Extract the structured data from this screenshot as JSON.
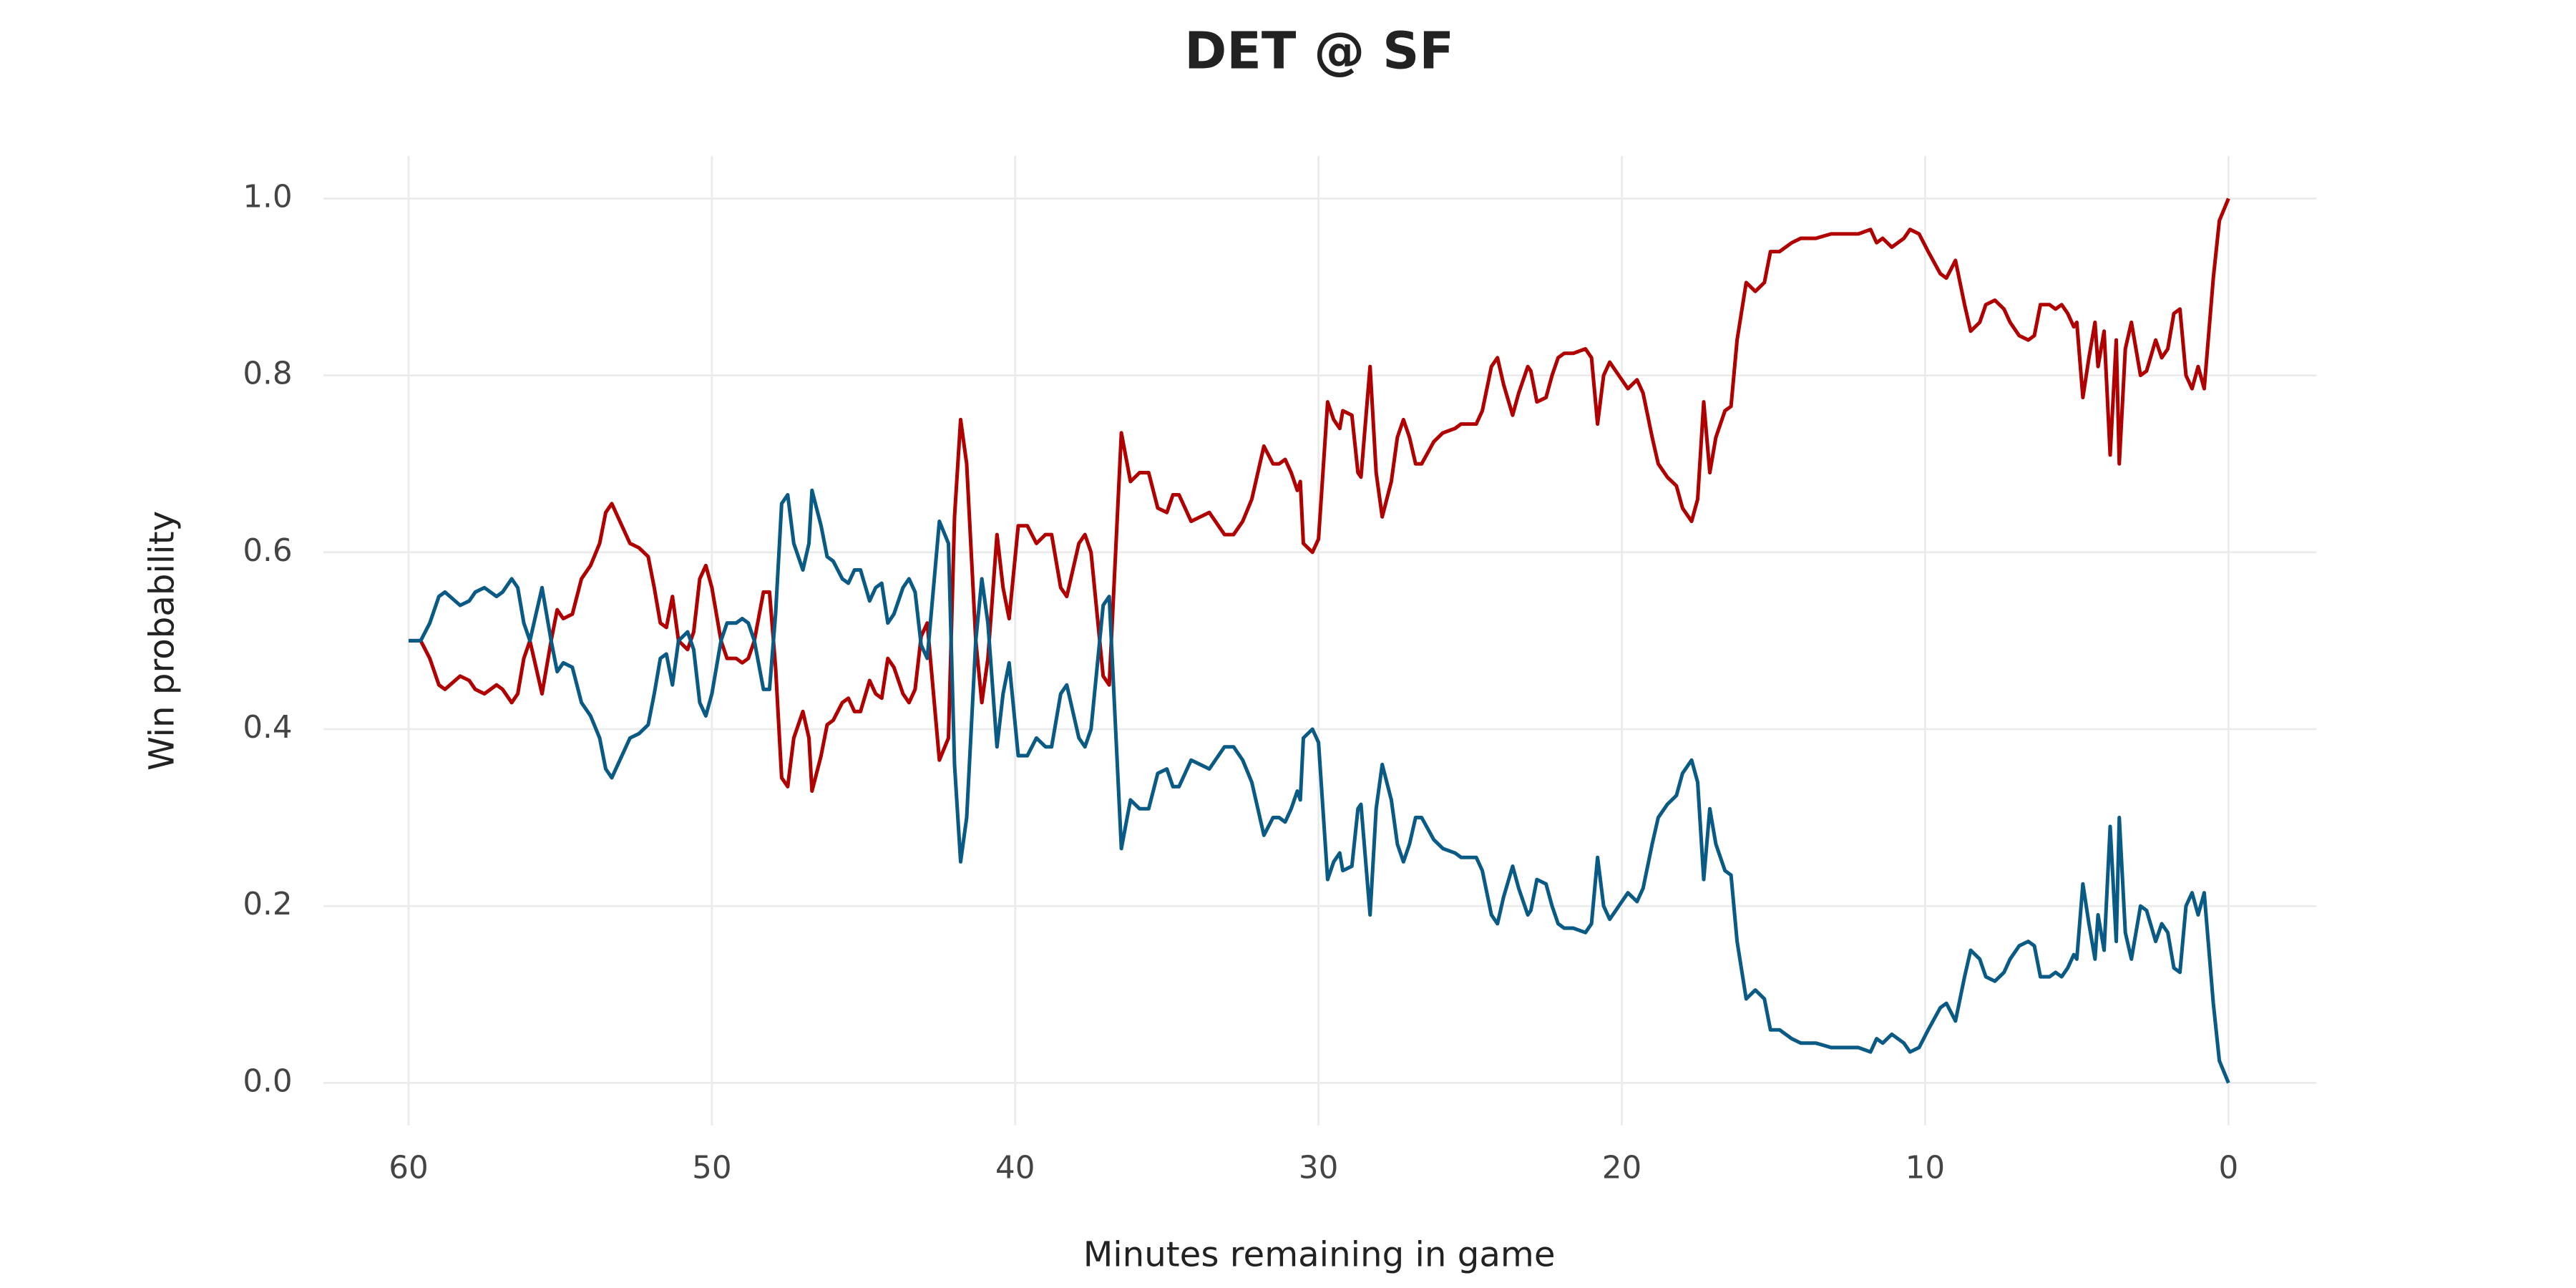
{
  "chart_data": {
    "type": "line",
    "title": "DET @ SF",
    "x_label": "Minutes remaining in game",
    "y_label": "Win probability",
    "x": [
      60,
      59.6,
      59.3,
      59.0,
      58.8,
      58.3,
      58.0,
      57.8,
      57.5,
      57.1,
      56.9,
      56.6,
      56.4,
      56.2,
      56.0,
      55.8,
      55.6,
      55.3,
      55.1,
      54.9,
      54.6,
      54.3,
      54.0,
      53.7,
      53.5,
      53.3,
      53.1,
      52.7,
      52.4,
      52.1,
      51.9,
      51.7,
      51.5,
      51.3,
      51.1,
      50.8,
      50.6,
      50.4,
      50.2,
      50.0,
      49.7,
      49.5,
      49.2,
      49.0,
      48.8,
      48.6,
      48.3,
      48.1,
      47.9,
      47.7,
      47.5,
      47.3,
      47.0,
      46.8,
      46.7,
      46.4,
      46.2,
      46.0,
      45.7,
      45.5,
      45.3,
      45.1,
      44.8,
      44.6,
      44.4,
      44.2,
      44.0,
      43.7,
      43.5,
      43.3,
      43.1,
      42.9,
      42.5,
      42.2,
      42.0,
      41.8,
      41.6,
      41.3,
      41.1,
      40.9,
      40.6,
      40.4,
      40.2,
      39.9,
      39.6,
      39.3,
      39.0,
      38.8,
      38.5,
      38.3,
      37.9,
      37.7,
      37.5,
      37.1,
      36.9,
      36.5,
      36.2,
      35.9,
      35.6,
      35.3,
      35.0,
      34.8,
      34.6,
      34.2,
      33.9,
      33.6,
      33.4,
      33.1,
      32.8,
      32.5,
      32.2,
      32.0,
      31.8,
      31.5,
      31.3,
      31.1,
      30.9,
      30.7,
      30.6,
      30.5,
      30.2,
      30.0,
      29.7,
      29.5,
      29.3,
      29.2,
      28.9,
      28.7,
      28.6,
      28.3,
      28.1,
      27.9,
      27.6,
      27.4,
      27.2,
      27.0,
      26.8,
      26.6,
      26.2,
      25.9,
      25.5,
      25.3,
      24.8,
      24.6,
      24.3,
      24.1,
      23.9,
      23.6,
      23.4,
      23.1,
      23.0,
      22.8,
      22.5,
      22.3,
      22.1,
      21.9,
      21.6,
      21.2,
      21.0,
      20.8,
      20.6,
      20.4,
      20.1,
      19.8,
      19.5,
      19.3,
      19.0,
      18.8,
      18.5,
      18.2,
      18.0,
      17.7,
      17.5,
      17.3,
      17.1,
      16.9,
      16.6,
      16.4,
      16.2,
      15.9,
      15.6,
      15.3,
      15.1,
      14.8,
      14.4,
      14.1,
      13.6,
      13.1,
      12.7,
      12.2,
      11.8,
      11.6,
      11.4,
      11.1,
      10.7,
      10.5,
      10.2,
      9.9,
      9.5,
      9.3,
      9.0,
      8.7,
      8.5,
      8.2,
      8.0,
      7.7,
      7.4,
      7.2,
      6.9,
      6.6,
      6.4,
      6.2,
      5.9,
      5.7,
      5.5,
      5.3,
      5.1,
      5.0,
      4.8,
      4.6,
      4.4,
      4.3,
      4.1,
      3.9,
      3.7,
      3.6,
      3.4,
      3.2,
      2.9,
      2.7,
      2.4,
      2.2,
      2.0,
      1.8,
      1.6,
      1.4,
      1.2,
      1.0,
      0.8,
      0.5,
      0.3,
      0
    ],
    "series": [
      {
        "color": "#b00000",
        "values": [
          0.5,
          0.5,
          0.48,
          0.45,
          0.445,
          0.46,
          0.455,
          0.445,
          0.44,
          0.45,
          0.445,
          0.43,
          0.44,
          0.48,
          0.5,
          0.47,
          0.44,
          0.5,
          0.535,
          0.525,
          0.53,
          0.57,
          0.585,
          0.61,
          0.645,
          0.655,
          0.64,
          0.61,
          0.605,
          0.595,
          0.56,
          0.52,
          0.515,
          0.55,
          0.5,
          0.49,
          0.51,
          0.57,
          0.585,
          0.56,
          0.5,
          0.48,
          0.48,
          0.475,
          0.48,
          0.5,
          0.555,
          0.555,
          0.47,
          0.345,
          0.335,
          0.39,
          0.42,
          0.39,
          0.33,
          0.37,
          0.405,
          0.41,
          0.43,
          0.435,
          0.42,
          0.42,
          0.455,
          0.44,
          0.435,
          0.48,
          0.47,
          0.44,
          0.43,
          0.445,
          0.505,
          0.52,
          0.365,
          0.39,
          0.64,
          0.75,
          0.7,
          0.5,
          0.43,
          0.48,
          0.62,
          0.56,
          0.525,
          0.63,
          0.63,
          0.61,
          0.62,
          0.62,
          0.56,
          0.55,
          0.61,
          0.62,
          0.6,
          0.46,
          0.45,
          0.735,
          0.68,
          0.69,
          0.69,
          0.65,
          0.645,
          0.665,
          0.665,
          0.635,
          0.64,
          0.645,
          0.635,
          0.62,
          0.62,
          0.635,
          0.66,
          0.69,
          0.72,
          0.7,
          0.7,
          0.705,
          0.69,
          0.67,
          0.68,
          0.61,
          0.6,
          0.615,
          0.77,
          0.75,
          0.74,
          0.76,
          0.755,
          0.69,
          0.685,
          0.81,
          0.69,
          0.64,
          0.68,
          0.73,
          0.75,
          0.73,
          0.7,
          0.7,
          0.725,
          0.735,
          0.74,
          0.745,
          0.745,
          0.76,
          0.81,
          0.82,
          0.79,
          0.755,
          0.78,
          0.81,
          0.805,
          0.77,
          0.775,
          0.8,
          0.82,
          0.825,
          0.825,
          0.83,
          0.82,
          0.745,
          0.8,
          0.815,
          0.8,
          0.785,
          0.795,
          0.78,
          0.73,
          0.7,
          0.685,
          0.675,
          0.65,
          0.635,
          0.66,
          0.77,
          0.69,
          0.73,
          0.76,
          0.765,
          0.84,
          0.905,
          0.895,
          0.905,
          0.94,
          0.94,
          0.95,
          0.955,
          0.955,
          0.96,
          0.96,
          0.96,
          0.965,
          0.95,
          0.955,
          0.945,
          0.955,
          0.965,
          0.96,
          0.94,
          0.915,
          0.91,
          0.93,
          0.88,
          0.85,
          0.86,
          0.88,
          0.885,
          0.875,
          0.86,
          0.845,
          0.84,
          0.845,
          0.88,
          0.88,
          0.875,
          0.88,
          0.87,
          0.855,
          0.86,
          0.775,
          0.82,
          0.86,
          0.81,
          0.85,
          0.71,
          0.84,
          0.7,
          0.83,
          0.86,
          0.8,
          0.805,
          0.84,
          0.82,
          0.83,
          0.87,
          0.875,
          0.8,
          0.785,
          0.81,
          0.785,
          0.91,
          0.975,
          1.0
        ]
      },
      {
        "color": "#0a5a86",
        "values": [
          0.5,
          0.5,
          0.52,
          0.55,
          0.555,
          0.54,
          0.545,
          0.555,
          0.56,
          0.55,
          0.555,
          0.57,
          0.56,
          0.52,
          0.5,
          0.53,
          0.56,
          0.5,
          0.465,
          0.475,
          0.47,
          0.43,
          0.415,
          0.39,
          0.355,
          0.345,
          0.36,
          0.39,
          0.395,
          0.405,
          0.44,
          0.48,
          0.485,
          0.45,
          0.5,
          0.51,
          0.49,
          0.43,
          0.415,
          0.44,
          0.5,
          0.52,
          0.52,
          0.525,
          0.52,
          0.5,
          0.445,
          0.445,
          0.53,
          0.655,
          0.665,
          0.61,
          0.58,
          0.61,
          0.67,
          0.63,
          0.595,
          0.59,
          0.57,
          0.565,
          0.58,
          0.58,
          0.545,
          0.56,
          0.565,
          0.52,
          0.53,
          0.56,
          0.57,
          0.555,
          0.495,
          0.48,
          0.635,
          0.61,
          0.36,
          0.25,
          0.3,
          0.5,
          0.57,
          0.52,
          0.38,
          0.44,
          0.475,
          0.37,
          0.37,
          0.39,
          0.38,
          0.38,
          0.44,
          0.45,
          0.39,
          0.38,
          0.4,
          0.54,
          0.55,
          0.265,
          0.32,
          0.31,
          0.31,
          0.35,
          0.355,
          0.335,
          0.335,
          0.365,
          0.36,
          0.355,
          0.365,
          0.38,
          0.38,
          0.365,
          0.34,
          0.31,
          0.28,
          0.3,
          0.3,
          0.295,
          0.31,
          0.33,
          0.32,
          0.39,
          0.4,
          0.385,
          0.23,
          0.25,
          0.26,
          0.24,
          0.245,
          0.31,
          0.315,
          0.19,
          0.31,
          0.36,
          0.32,
          0.27,
          0.25,
          0.27,
          0.3,
          0.3,
          0.275,
          0.265,
          0.26,
          0.255,
          0.255,
          0.24,
          0.19,
          0.18,
          0.21,
          0.245,
          0.22,
          0.19,
          0.195,
          0.23,
          0.225,
          0.2,
          0.18,
          0.175,
          0.175,
          0.17,
          0.18,
          0.255,
          0.2,
          0.185,
          0.2,
          0.215,
          0.205,
          0.22,
          0.27,
          0.3,
          0.315,
          0.325,
          0.35,
          0.365,
          0.34,
          0.23,
          0.31,
          0.27,
          0.24,
          0.235,
          0.16,
          0.095,
          0.105,
          0.095,
          0.06,
          0.06,
          0.05,
          0.045,
          0.045,
          0.04,
          0.04,
          0.04,
          0.035,
          0.05,
          0.045,
          0.055,
          0.045,
          0.035,
          0.04,
          0.06,
          0.085,
          0.09,
          0.07,
          0.12,
          0.15,
          0.14,
          0.12,
          0.115,
          0.125,
          0.14,
          0.155,
          0.16,
          0.155,
          0.12,
          0.12,
          0.125,
          0.12,
          0.13,
          0.145,
          0.14,
          0.225,
          0.18,
          0.14,
          0.19,
          0.15,
          0.29,
          0.16,
          0.3,
          0.17,
          0.14,
          0.2,
          0.195,
          0.16,
          0.18,
          0.17,
          0.13,
          0.125,
          0.2,
          0.215,
          0.19,
          0.215,
          0.09,
          0.025,
          0.0
        ]
      }
    ],
    "xlim": [
      62.8,
      -2.9
    ],
    "xticks": [
      60,
      50,
      40,
      30,
      20,
      10,
      0
    ],
    "ylim": [
      -0.048,
      1.048
    ],
    "yticks": [
      {
        "value": 0,
        "label": "0.0"
      },
      0.2,
      0.4,
      0.6,
      0.8,
      {
        "value": 1,
        "label": "1.0"
      }
    ],
    "grid": true
  }
}
